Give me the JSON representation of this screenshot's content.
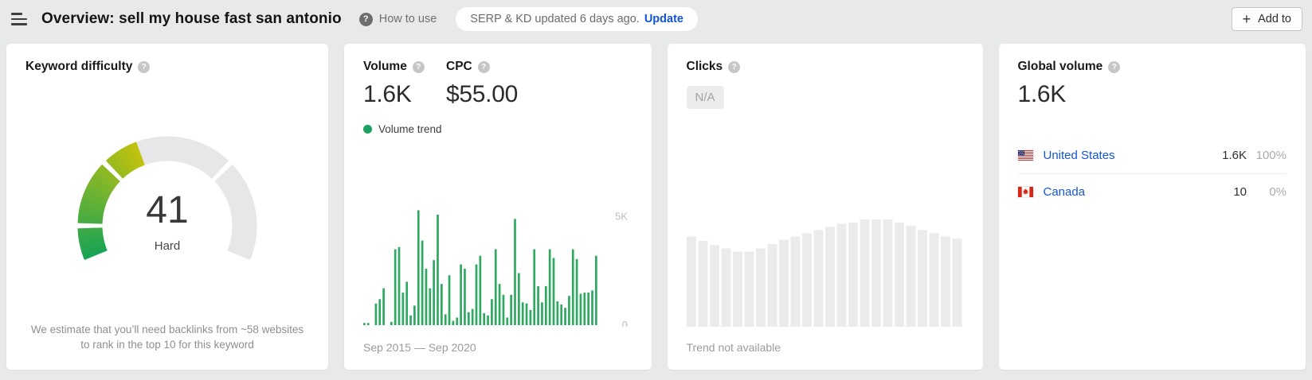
{
  "header": {
    "title": "Overview: sell my house fast san antonio",
    "help_icon": "?",
    "how_to_use": "How to use",
    "serp_status": "SERP & KD updated 6 days ago.",
    "update_label": "Update",
    "add_to_label": "Add to",
    "plus_icon": "+"
  },
  "cards": {
    "keyword_difficulty": {
      "title": "Keyword difficulty",
      "help_icon": "?",
      "value": "41",
      "level": "Hard",
      "footnote": "We estimate that you’ll need backlinks from ~58 websites to rank in the top 10 for this keyword"
    },
    "volume": {
      "title": "Volume",
      "help_icon": "?",
      "value": "1.6K",
      "cpc_title": "CPC",
      "cpc_value": "$55.00",
      "legend": "Volume trend",
      "date_range": "Sep 2015 — Sep 2020"
    },
    "clicks": {
      "title": "Clicks",
      "help_icon": "?",
      "badge": "N/A",
      "note": "Trend not available"
    },
    "global_volume": {
      "title": "Global volume",
      "help_icon": "?",
      "value": "1.6K",
      "countries": [
        {
          "flag": "us-flag",
          "name": "United States",
          "volume": "1.6K",
          "percent": "100%"
        },
        {
          "flag": "canada-flag",
          "name": "Canada",
          "volume": "10",
          "percent": "0%"
        }
      ]
    }
  },
  "colors": {
    "page_bg": "#e8e9eb",
    "card_bg": "#ffffff",
    "accent_blue": "#1155d6",
    "bar_green": "#2fa961",
    "legend_green": "#18a15f",
    "gauge_start_green": "#16a356",
    "gauge_end_yellow": "#c1c20e",
    "gauge_track": "#e7e7e9",
    "placeholder_bar": "#ebebed",
    "axis_label": "#bcbcbc"
  },
  "chart_data": [
    {
      "type": "gauge",
      "title": "Keyword difficulty",
      "value": 41,
      "max": 100,
      "label": "Hard",
      "arc_degrees": 225,
      "segment_boundaries": [
        10,
        30,
        70
      ],
      "fill_start_color": "#16a356",
      "fill_end_color": "#c1c20e",
      "track_color": "#e7e7e9"
    },
    {
      "type": "bar",
      "title": "Volume trend",
      "x_start": "Sep 2015",
      "x_end": "Sep 2020",
      "x_unit": "month",
      "ylim": [
        0,
        5500
      ],
      "yticks": [
        {
          "label": "5K",
          "value": 5000
        },
        {
          "label": "0",
          "value": 0
        }
      ],
      "bar_color": "#2fa961",
      "values": [
        100,
        100,
        0,
        1000,
        1200,
        1700,
        0,
        150,
        3500,
        3600,
        1500,
        2000,
        450,
        900,
        5300,
        3900,
        2600,
        1700,
        3000,
        5100,
        1900,
        500,
        2300,
        200,
        350,
        2800,
        2600,
        600,
        750,
        2800,
        3200,
        550,
        450,
        1200,
        3500,
        1900,
        1400,
        350,
        1400,
        4900,
        2400,
        1050,
        1000,
        700,
        3500,
        1800,
        1050,
        1800,
        3500,
        3100,
        1100,
        950,
        800,
        1350,
        3500,
        3050,
        1450,
        1500,
        1500,
        1600,
        3200
      ]
    },
    {
      "type": "bar",
      "title": "Clicks trend placeholder",
      "placeholder": true,
      "note": "Trend not available",
      "bar_color": "#ebebed",
      "ylim": [
        0,
        1
      ],
      "values": [
        0.84,
        0.8,
        0.76,
        0.73,
        0.7,
        0.7,
        0.73,
        0.77,
        0.81,
        0.84,
        0.87,
        0.9,
        0.93,
        0.96,
        0.97,
        1.0,
        1.0,
        1.0,
        0.97,
        0.94,
        0.9,
        0.87,
        0.84,
        0.82
      ]
    }
  ]
}
